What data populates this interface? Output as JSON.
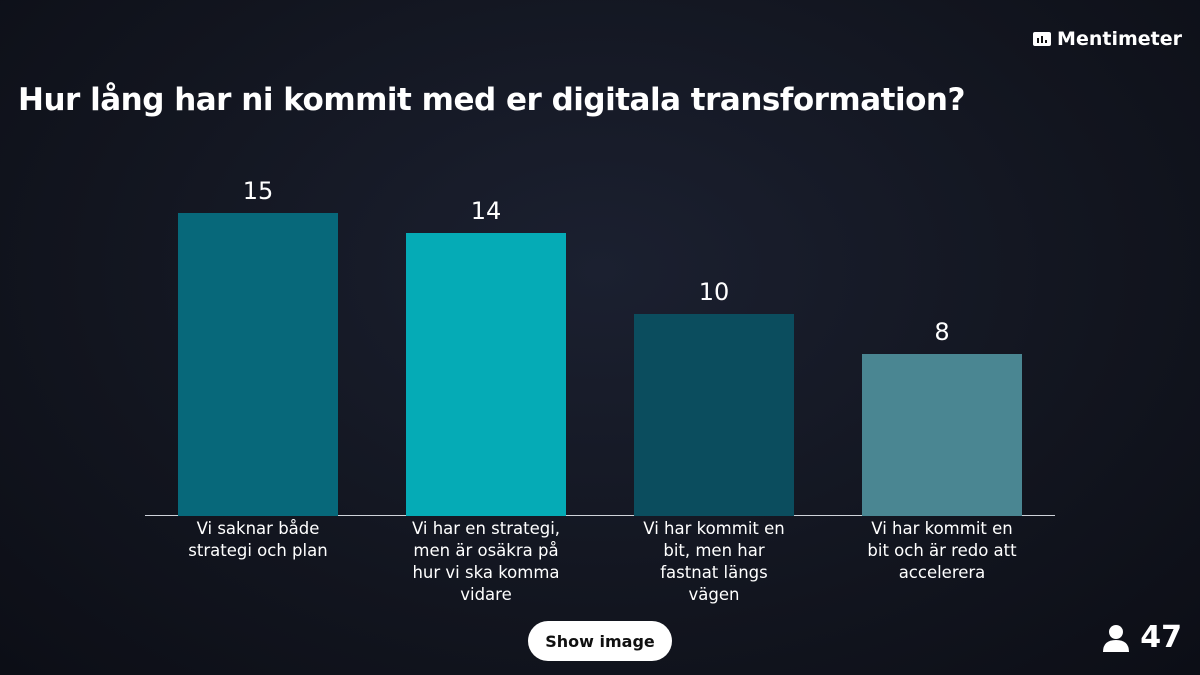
{
  "brand": "Mentimeter",
  "chart_data": {
    "type": "bar",
    "title": "Hur lång har ni kommit med er digitala transformation?",
    "categories": [
      "Vi saknar både strategi och plan",
      "Vi har en strategi, men är osäkra på hur vi ska komma vidare",
      "Vi har kommit en bit, men har fastnat längs vägen",
      "Vi har kommit en bit och är redo att accelerera"
    ],
    "values": [
      15,
      14,
      10,
      8
    ],
    "colors": [
      "#07687a",
      "#05abb6",
      "#0b4d5e",
      "#4a8692"
    ]
  },
  "button": "Show image",
  "participants": 47
}
